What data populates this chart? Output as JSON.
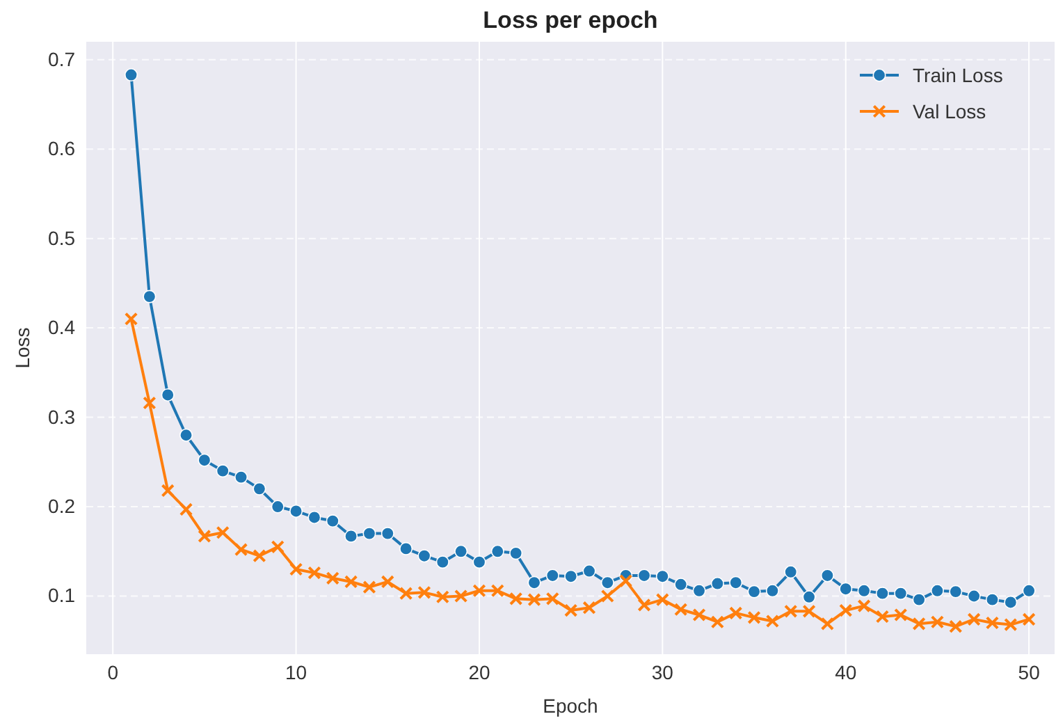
{
  "chart_data": {
    "type": "line",
    "title": "Loss per epoch",
    "xlabel": "Epoch",
    "ylabel": "Loss",
    "x": [
      1,
      2,
      3,
      4,
      5,
      6,
      7,
      8,
      9,
      10,
      11,
      12,
      13,
      14,
      15,
      16,
      17,
      18,
      19,
      20,
      21,
      22,
      23,
      24,
      25,
      26,
      27,
      28,
      29,
      30,
      31,
      32,
      33,
      34,
      35,
      36,
      37,
      38,
      39,
      40,
      41,
      42,
      43,
      44,
      45,
      46,
      47,
      48,
      49,
      50
    ],
    "series": [
      {
        "name": "Train Loss",
        "color": "#1f77b4",
        "marker": "circle",
        "values": [
          0.683,
          0.435,
          0.325,
          0.28,
          0.252,
          0.24,
          0.233,
          0.22,
          0.2,
          0.195,
          0.188,
          0.184,
          0.167,
          0.17,
          0.17,
          0.153,
          0.145,
          0.138,
          0.15,
          0.138,
          0.15,
          0.148,
          0.115,
          0.123,
          0.122,
          0.128,
          0.115,
          0.123,
          0.123,
          0.122,
          0.113,
          0.106,
          0.114,
          0.115,
          0.105,
          0.106,
          0.127,
          0.099,
          0.123,
          0.108,
          0.106,
          0.103,
          0.103,
          0.096,
          0.106,
          0.105,
          0.1,
          0.096,
          0.093,
          0.106
        ]
      },
      {
        "name": "Val Loss",
        "color": "#ff7f0e",
        "marker": "cross",
        "values": [
          0.41,
          0.316,
          0.218,
          0.197,
          0.167,
          0.171,
          0.152,
          0.145,
          0.155,
          0.13,
          0.126,
          0.12,
          0.116,
          0.11,
          0.116,
          0.103,
          0.104,
          0.099,
          0.1,
          0.106,
          0.106,
          0.097,
          0.096,
          0.097,
          0.084,
          0.087,
          0.1,
          0.117,
          0.09,
          0.096,
          0.085,
          0.079,
          0.071,
          0.081,
          0.076,
          0.072,
          0.083,
          0.083,
          0.069,
          0.084,
          0.089,
          0.077,
          0.079,
          0.069,
          0.071,
          0.066,
          0.074,
          0.07,
          0.068,
          0.074
        ]
      }
    ],
    "xlim": [
      -1.45,
      51.4
    ],
    "xticks": [
      0,
      10,
      20,
      30,
      40,
      50
    ],
    "ylim": [
      0.035,
      0.72
    ],
    "yticks": [
      0.1,
      0.2,
      0.3,
      0.4,
      0.5,
      0.6,
      0.7
    ],
    "grid": true,
    "legend": "top right",
    "line_style": "solid"
  }
}
